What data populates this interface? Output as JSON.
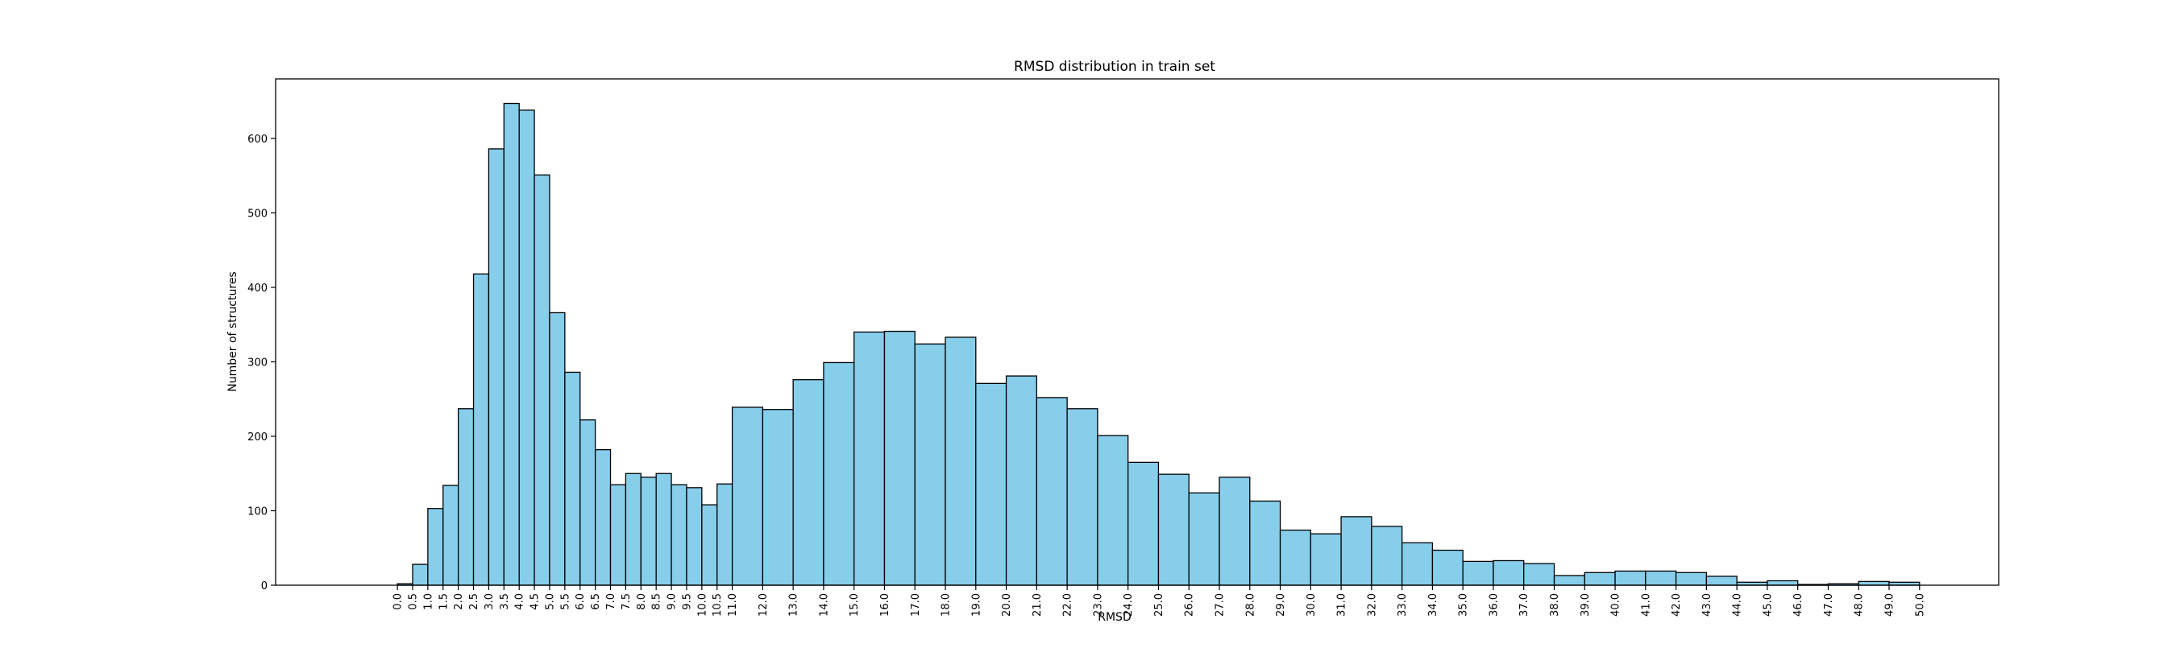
{
  "chart_data": {
    "type": "bar",
    "title": "RMSD distribution in train set",
    "xlabel": "RMSD",
    "ylabel": "Number of structures",
    "ylim": [
      0,
      680
    ],
    "yticks": [
      0,
      100,
      200,
      300,
      400,
      500,
      600
    ],
    "bar_color": "#87CEEB",
    "edge_color": "#000000",
    "grid": false,
    "legend": "none",
    "bins": [
      {
        "x0": 0.0,
        "x1": 0.5,
        "value": 2
      },
      {
        "x0": 0.5,
        "x1": 1.0,
        "value": 28
      },
      {
        "x0": 1.0,
        "x1": 1.5,
        "value": 103
      },
      {
        "x0": 1.5,
        "x1": 2.0,
        "value": 134
      },
      {
        "x0": 2.0,
        "x1": 2.5,
        "value": 237
      },
      {
        "x0": 2.5,
        "x1": 3.0,
        "value": 418
      },
      {
        "x0": 3.0,
        "x1": 3.5,
        "value": 586
      },
      {
        "x0": 3.5,
        "x1": 4.0,
        "value": 647
      },
      {
        "x0": 4.0,
        "x1": 4.5,
        "value": 638
      },
      {
        "x0": 4.5,
        "x1": 5.0,
        "value": 551
      },
      {
        "x0": 5.0,
        "x1": 5.5,
        "value": 366
      },
      {
        "x0": 5.5,
        "x1": 6.0,
        "value": 286
      },
      {
        "x0": 6.0,
        "x1": 6.5,
        "value": 222
      },
      {
        "x0": 6.5,
        "x1": 7.0,
        "value": 182
      },
      {
        "x0": 7.0,
        "x1": 7.5,
        "value": 135
      },
      {
        "x0": 7.5,
        "x1": 8.0,
        "value": 150
      },
      {
        "x0": 8.0,
        "x1": 8.5,
        "value": 145
      },
      {
        "x0": 8.5,
        "x1": 9.0,
        "value": 150
      },
      {
        "x0": 9.0,
        "x1": 9.5,
        "value": 135
      },
      {
        "x0": 9.5,
        "x1": 10.0,
        "value": 131
      },
      {
        "x0": 10.0,
        "x1": 10.5,
        "value": 108
      },
      {
        "x0": 10.5,
        "x1": 11.0,
        "value": 136
      },
      {
        "x0": 11.0,
        "x1": 12.0,
        "value": 239
      },
      {
        "x0": 12.0,
        "x1": 13.0,
        "value": 236
      },
      {
        "x0": 13.0,
        "x1": 14.0,
        "value": 276
      },
      {
        "x0": 14.0,
        "x1": 15.0,
        "value": 299
      },
      {
        "x0": 15.0,
        "x1": 16.0,
        "value": 340
      },
      {
        "x0": 16.0,
        "x1": 17.0,
        "value": 341
      },
      {
        "x0": 17.0,
        "x1": 18.0,
        "value": 324
      },
      {
        "x0": 18.0,
        "x1": 19.0,
        "value": 333
      },
      {
        "x0": 19.0,
        "x1": 20.0,
        "value": 271
      },
      {
        "x0": 20.0,
        "x1": 21.0,
        "value": 281
      },
      {
        "x0": 21.0,
        "x1": 22.0,
        "value": 252
      },
      {
        "x0": 22.0,
        "x1": 23.0,
        "value": 237
      },
      {
        "x0": 23.0,
        "x1": 24.0,
        "value": 201
      },
      {
        "x0": 24.0,
        "x1": 25.0,
        "value": 165
      },
      {
        "x0": 25.0,
        "x1": 26.0,
        "value": 149
      },
      {
        "x0": 26.0,
        "x1": 27.0,
        "value": 124
      },
      {
        "x0": 27.0,
        "x1": 28.0,
        "value": 145
      },
      {
        "x0": 28.0,
        "x1": 29.0,
        "value": 113
      },
      {
        "x0": 29.0,
        "x1": 30.0,
        "value": 74
      },
      {
        "x0": 30.0,
        "x1": 31.0,
        "value": 69
      },
      {
        "x0": 31.0,
        "x1": 32.0,
        "value": 92
      },
      {
        "x0": 32.0,
        "x1": 33.0,
        "value": 79
      },
      {
        "x0": 33.0,
        "x1": 34.0,
        "value": 57
      },
      {
        "x0": 34.0,
        "x1": 35.0,
        "value": 47
      },
      {
        "x0": 35.0,
        "x1": 36.0,
        "value": 32
      },
      {
        "x0": 36.0,
        "x1": 37.0,
        "value": 33
      },
      {
        "x0": 37.0,
        "x1": 38.0,
        "value": 29
      },
      {
        "x0": 38.0,
        "x1": 39.0,
        "value": 13
      },
      {
        "x0": 39.0,
        "x1": 40.0,
        "value": 17
      },
      {
        "x0": 40.0,
        "x1": 41.0,
        "value": 19
      },
      {
        "x0": 41.0,
        "x1": 42.0,
        "value": 19
      },
      {
        "x0": 42.0,
        "x1": 43.0,
        "value": 17
      },
      {
        "x0": 43.0,
        "x1": 44.0,
        "value": 12
      },
      {
        "x0": 44.0,
        "x1": 45.0,
        "value": 4
      },
      {
        "x0": 45.0,
        "x1": 46.0,
        "value": 6
      },
      {
        "x0": 46.0,
        "x1": 47.0,
        "value": 1
      },
      {
        "x0": 47.0,
        "x1": 48.0,
        "value": 2
      },
      {
        "x0": 48.0,
        "x1": 49.0,
        "value": 5
      },
      {
        "x0": 49.0,
        "x1": 50.0,
        "value": 4
      }
    ],
    "xtick_labels": [
      "0.0",
      "0.5",
      "1.0",
      "1.5",
      "2.0",
      "2.5",
      "3.0",
      "3.5",
      "4.0",
      "4.5",
      "5.0",
      "5.5",
      "6.0",
      "6.5",
      "7.0",
      "7.5",
      "8.0",
      "8.5",
      "9.0",
      "9.5",
      "10.0",
      "10.5",
      "11.0",
      "12.0",
      "13.0",
      "14.0",
      "15.0",
      "16.0",
      "17.0",
      "18.0",
      "19.0",
      "20.0",
      "21.0",
      "22.0",
      "23.0",
      "24.0",
      "25.0",
      "26.0",
      "27.0",
      "28.0",
      "29.0",
      "30.0",
      "31.0",
      "32.0",
      "33.0",
      "34.0",
      "35.0",
      "36.0",
      "37.0",
      "38.0",
      "39.0",
      "40.0",
      "41.0",
      "42.0",
      "43.0",
      "44.0",
      "45.0",
      "46.0",
      "47.0",
      "48.0",
      "49.0",
      "50.0"
    ]
  }
}
